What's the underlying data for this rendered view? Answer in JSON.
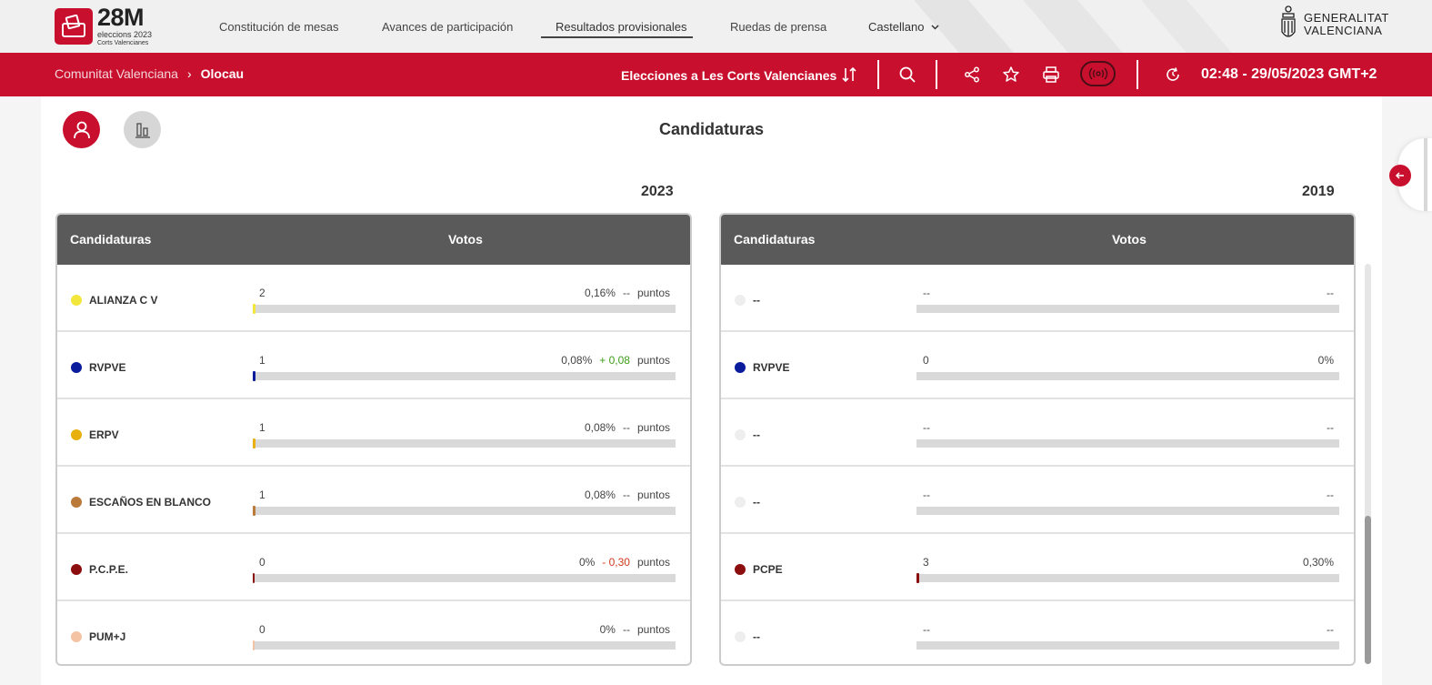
{
  "brand": {
    "logo_big": "28M",
    "logo_sub": "eleccions 2023",
    "logo_sub2": "Corts Valencianes",
    "gva_line1": "GENERALITAT",
    "gva_line2": "VALENCIANA"
  },
  "nav": {
    "items": [
      "Constitución de mesas",
      "Avances de participación",
      "Resultados provisionales",
      "Ruedas de prensa"
    ],
    "language": "Castellano"
  },
  "redbar": {
    "breadcrumb_root": "Comunitat Valenciana",
    "breadcrumb_sep": "›",
    "breadcrumb_current": "Olocau",
    "election": "Elecciones a Les Corts Valencianes",
    "timestamp": "02:48 - 29/05/2023 GMT+2"
  },
  "section": {
    "heading": "Candidaturas"
  },
  "tables": [
    {
      "year": "2023",
      "header_party": "Candidaturas",
      "header_votes": "Votos",
      "rows": [
        {
          "name": "ALIANZA C V",
          "color": "#f2e63a",
          "votes": "2",
          "pct": "0,16%",
          "diff": "--",
          "diff_kind": "none",
          "suffix": "puntos",
          "bar": 0.0016
        },
        {
          "name": "RVPVE",
          "color": "#0a1c9c",
          "votes": "1",
          "pct": "0,08%",
          "diff": "+ 0,08",
          "diff_kind": "pos",
          "suffix": "puntos",
          "bar": 0.0008
        },
        {
          "name": "ERPV",
          "color": "#e8b00e",
          "votes": "1",
          "pct": "0,08%",
          "diff": "--",
          "diff_kind": "none",
          "suffix": "puntos",
          "bar": 0.0008
        },
        {
          "name": "ESCAÑOS EN BLANCO",
          "color": "#b97a3a",
          "votes": "1",
          "pct": "0,08%",
          "diff": "--",
          "diff_kind": "none",
          "suffix": "puntos",
          "bar": 0.0008
        },
        {
          "name": "P.C.P.E.",
          "color": "#8b0d0d",
          "votes": "0",
          "pct": "0%",
          "diff": "- 0,30",
          "diff_kind": "neg",
          "suffix": "puntos",
          "bar": 0
        },
        {
          "name": "PUM+J",
          "color": "#f3c3a4",
          "votes": "0",
          "pct": "0%",
          "diff": "--",
          "diff_kind": "none",
          "suffix": "puntos",
          "bar": 0
        }
      ]
    },
    {
      "year": "2019",
      "header_party": "Candidaturas",
      "header_votes": "Votos",
      "rows": [
        {
          "name": "--",
          "color": "#eeeeee",
          "votes": "--",
          "pct": "--",
          "bar": 0
        },
        {
          "name": "RVPVE",
          "color": "#0a1c9c",
          "votes": "0",
          "pct": "0%",
          "bar": 0
        },
        {
          "name": "--",
          "color": "#eeeeee",
          "votes": "--",
          "pct": "--",
          "bar": 0
        },
        {
          "name": "--",
          "color": "#eeeeee",
          "votes": "--",
          "pct": "--",
          "bar": 0
        },
        {
          "name": "PCPE",
          "color": "#8b0d0d",
          "votes": "3",
          "pct": "0,30%",
          "bar": 0.003
        },
        {
          "name": "--",
          "color": "#eeeeee",
          "votes": "--",
          "pct": "--",
          "bar": 0
        }
      ]
    }
  ]
}
